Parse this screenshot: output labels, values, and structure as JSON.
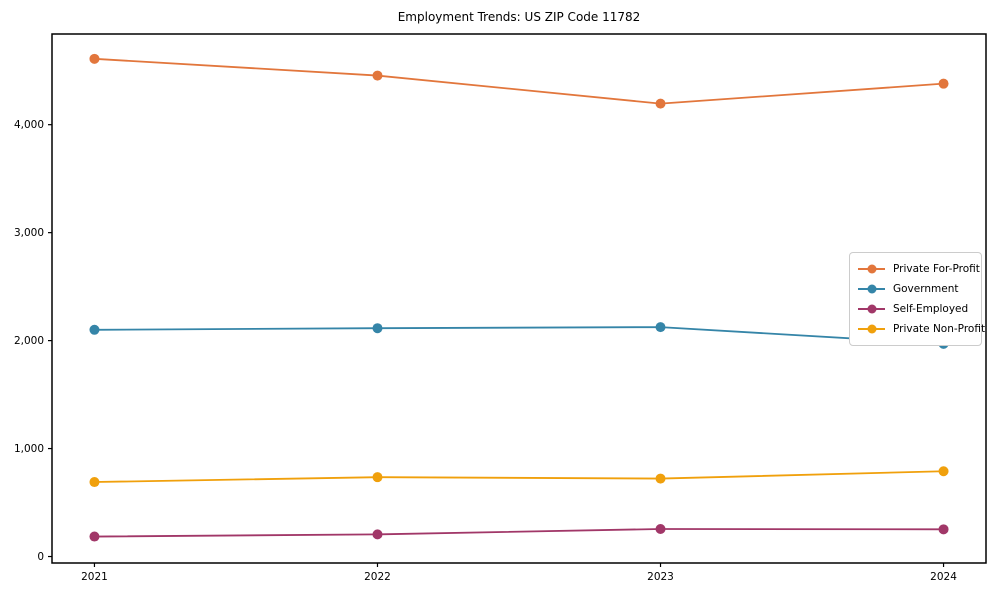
{
  "chart_data": {
    "type": "line",
    "title": "Employment Trends: US ZIP Code 11782",
    "xlabel": "",
    "ylabel": "",
    "x": [
      2021,
      2022,
      2023,
      2024
    ],
    "series": [
      {
        "name": "Private For-Profit",
        "color": "#e2763c",
        "values": [
          4610,
          4455,
          4195,
          4380
        ]
      },
      {
        "name": "Government",
        "color": "#3585a8",
        "values": [
          2100,
          2115,
          2125,
          1970
        ]
      },
      {
        "name": "Self-Employed",
        "color": "#a13768",
        "values": [
          185,
          205,
          255,
          252
        ]
      },
      {
        "name": "Private Non-Profit",
        "color": "#f0a00c",
        "values": [
          690,
          735,
          722,
          790
        ]
      }
    ],
    "xticks": {
      "values": [
        2021,
        2022,
        2023,
        2024
      ],
      "labels": [
        "2021",
        "2022",
        "2023",
        "2024"
      ]
    },
    "yticks": {
      "values": [
        0,
        1000,
        2000,
        3000,
        4000
      ],
      "labels": [
        "0",
        "1,000",
        "2,000",
        "3,000",
        "4,000"
      ]
    },
    "xlim": [
      2020.85,
      2024.15
    ],
    "ylim": [
      -60,
      4840
    ],
    "grid": false,
    "legend_position": "center-right",
    "axis_color": "#000000",
    "tick_label_color": "#000000"
  }
}
